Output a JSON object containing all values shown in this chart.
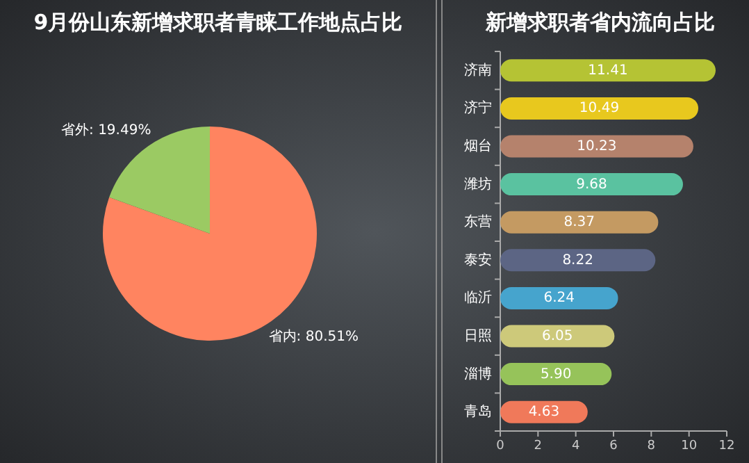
{
  "chart_data": [
    {
      "type": "pie",
      "title": "9月份山东新增求职者青睐工作地点占比",
      "categories": [
        "省内",
        "省外"
      ],
      "values": [
        80.51,
        19.49
      ],
      "colors": [
        "#ff8460",
        "#9bca63"
      ],
      "value_labels": [
        "80.51%",
        "19.49%"
      ]
    },
    {
      "type": "bar",
      "title": "新增求职者省内流向占比",
      "orientation": "horizontal",
      "categories": [
        "济南",
        "济宁",
        "烟台",
        "潍坊",
        "东营",
        "泰安",
        "临沂",
        "日照",
        "淄博",
        "青岛"
      ],
      "values": [
        11.41,
        10.49,
        10.23,
        9.68,
        8.37,
        8.22,
        6.24,
        6.05,
        5.9,
        4.63
      ],
      "colors": [
        "#b5c334",
        "#e8c81e",
        "#b5826c",
        "#5ac2a0",
        "#c49a62",
        "#5c6584",
        "#46a4cd",
        "#cdc97a",
        "#96c35a",
        "#f0795a"
      ],
      "value_labels": [
        "11.41",
        "10.49",
        "10.23",
        "9.68",
        "8.37",
        "8.22",
        "6.24",
        "6.05",
        "5.90",
        "4.63"
      ],
      "xlim": [
        0,
        12
      ],
      "xticks": [
        0,
        2,
        4,
        6,
        8,
        10,
        12
      ]
    }
  ]
}
